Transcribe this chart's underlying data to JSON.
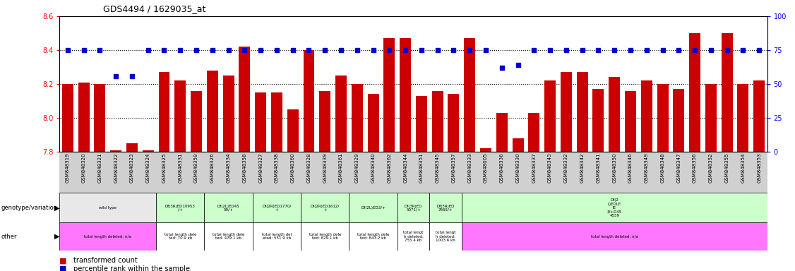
{
  "title": "GDS4494 / 1629035_at",
  "bar_color": "#cc0000",
  "dot_color": "#0000cc",
  "ylim_left": [
    7.8,
    8.6
  ],
  "ylim_right": [
    0,
    100
  ],
  "yticks_left": [
    7.8,
    8.0,
    8.2,
    8.4,
    8.6
  ],
  "yticks_right": [
    0,
    25,
    50,
    75,
    100
  ],
  "hlines": [
    8.0,
    8.2,
    8.4
  ],
  "samples": [
    "GSM848319",
    "GSM848320",
    "GSM848321",
    "GSM848322",
    "GSM848323",
    "GSM848324",
    "GSM848325",
    "GSM848331",
    "GSM848359",
    "GSM848326",
    "GSM848334",
    "GSM848358",
    "GSM848327",
    "GSM848338",
    "GSM848360",
    "GSM848328",
    "GSM848339",
    "GSM848361",
    "GSM848329",
    "GSM848340",
    "GSM848362",
    "GSM848344",
    "GSM848351",
    "GSM848345",
    "GSM848357",
    "GSM848333",
    "GSM848005",
    "GSM848336",
    "GSM848330",
    "GSM848337",
    "GSM848343",
    "GSM848332",
    "GSM848342",
    "GSM848341",
    "GSM848350",
    "GSM848346",
    "GSM848349",
    "GSM848348",
    "GSM848347",
    "GSM848356",
    "GSM848352",
    "GSM848355",
    "GSM848354",
    "GSM848353"
  ],
  "bar_values": [
    8.2,
    8.21,
    8.2,
    7.81,
    7.85,
    7.81,
    8.27,
    8.22,
    8.16,
    8.28,
    8.25,
    8.42,
    8.15,
    8.15,
    8.05,
    8.4,
    8.16,
    8.25,
    8.2,
    8.14,
    8.47,
    8.47,
    8.13,
    8.16,
    8.14,
    8.47,
    7.82,
    8.03,
    7.88,
    8.03,
    8.22,
    8.27,
    8.27,
    8.17,
    8.24,
    8.16,
    8.22,
    8.2,
    8.17,
    8.5,
    8.2,
    8.5,
    8.2,
    8.22
  ],
  "dot_values": [
    75,
    75,
    75,
    56,
    56,
    75,
    75,
    75,
    75,
    75,
    75,
    75,
    75,
    75,
    75,
    75,
    75,
    75,
    75,
    75,
    75,
    75,
    75,
    75,
    75,
    75,
    75,
    62,
    64,
    75,
    75,
    75,
    75,
    75,
    75,
    75,
    75,
    75,
    75,
    75,
    75,
    75,
    75,
    75
  ],
  "geno_groups": [
    {
      "label": "wild type",
      "color": "#e8e8e8",
      "start": 0,
      "end": 6
    },
    {
      "label": "Df(3R)ED10953\n/+",
      "color": "#ccffcc",
      "start": 6,
      "end": 9
    },
    {
      "label": "Df(2L)ED45\n59/+",
      "color": "#ccffcc",
      "start": 9,
      "end": 12
    },
    {
      "label": "Df(2R)ED1770/\n+",
      "color": "#ccffcc",
      "start": 12,
      "end": 15
    },
    {
      "label": "Df(2R)ED1612/\n+",
      "color": "#ccffcc",
      "start": 15,
      "end": 18
    },
    {
      "label": "Df(2L)ED3/+",
      "color": "#ccffcc",
      "start": 18,
      "end": 21
    },
    {
      "label": "Df(3R)ED\n5071/+",
      "color": "#ccffcc",
      "start": 21,
      "end": 23
    },
    {
      "label": "Df(3R)ED\n7665/+",
      "color": "#ccffcc",
      "start": 23,
      "end": 25
    },
    {
      "label": "Df(2\nL)EDLE\nIE\n3/+D45\n4559",
      "color": "#ccffcc",
      "start": 25,
      "end": 44
    }
  ],
  "other_groups": [
    {
      "label": "total length deleted: n/a",
      "color": "#ff77ff",
      "start": 0,
      "end": 6
    },
    {
      "label": "total length dele\nted: 70.9 kb",
      "color": "#ffffff",
      "start": 6,
      "end": 9
    },
    {
      "label": "total length dele\nted: 479.1 kb",
      "color": "#ffffff",
      "start": 9,
      "end": 12
    },
    {
      "label": "total length del\neted: 551.9 kb",
      "color": "#ffffff",
      "start": 12,
      "end": 15
    },
    {
      "label": "total length dele\nted: 829.1 kb",
      "color": "#ffffff",
      "start": 15,
      "end": 18
    },
    {
      "label": "total length dele\nted: 843.2 kb",
      "color": "#ffffff",
      "start": 18,
      "end": 21
    },
    {
      "label": "total lengt\nh deleted:\n755.4 kb",
      "color": "#ffffff",
      "start": 21,
      "end": 23
    },
    {
      "label": "total lengt\nh deleted:\n1003.6 kb",
      "color": "#ffffff",
      "start": 23,
      "end": 25
    },
    {
      "label": "total length deleted: n/a",
      "color": "#ff77ff",
      "start": 25,
      "end": 44
    }
  ],
  "background_color": "#ffffff",
  "plot_bg_color": "#ffffff",
  "xtick_bg": "#d0d0d0"
}
